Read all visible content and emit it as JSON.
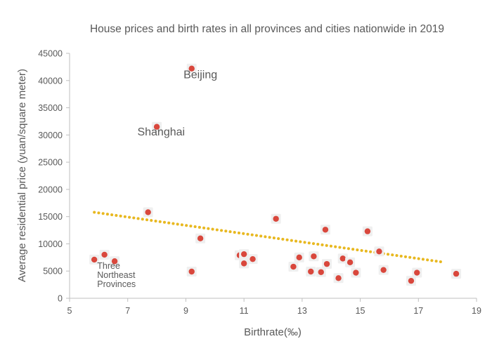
{
  "chart_data": {
    "type": "scatter",
    "title": "House prices and birth rates in all provinces and cities nationwide in 2019",
    "xlabel": "Birthrate(‰)",
    "ylabel": "Average residential price (yuan/square meter)",
    "xlim": [
      5,
      19
    ],
    "ylim": [
      0,
      45000
    ],
    "x_ticks": [
      5,
      7,
      9,
      11,
      13,
      15,
      17,
      19
    ],
    "y_ticks": [
      0,
      5000,
      10000,
      15000,
      20000,
      25000,
      30000,
      35000,
      40000,
      45000
    ],
    "grid": false,
    "legend": "none",
    "colors": {
      "points": "#d9473c",
      "trendline": "#e8b820",
      "text": "#595959",
      "axis": "#bfbfbf"
    },
    "points": [
      {
        "x": 9.2,
        "y": 42200
      },
      {
        "x": 8.0,
        "y": 31500
      },
      {
        "x": 7.7,
        "y": 15800
      },
      {
        "x": 5.85,
        "y": 7100
      },
      {
        "x": 6.2,
        "y": 8000
      },
      {
        "x": 6.55,
        "y": 6800
      },
      {
        "x": 9.2,
        "y": 4900
      },
      {
        "x": 9.5,
        "y": 11000
      },
      {
        "x": 10.85,
        "y": 7900
      },
      {
        "x": 11.0,
        "y": 8100
      },
      {
        "x": 11.0,
        "y": 6400
      },
      {
        "x": 11.3,
        "y": 7200
      },
      {
        "x": 12.1,
        "y": 14600
      },
      {
        "x": 12.7,
        "y": 5800
      },
      {
        "x": 12.9,
        "y": 7500
      },
      {
        "x": 13.3,
        "y": 4900
      },
      {
        "x": 13.4,
        "y": 7700
      },
      {
        "x": 13.65,
        "y": 4800
      },
      {
        "x": 13.8,
        "y": 12600
      },
      {
        "x": 13.85,
        "y": 6300
      },
      {
        "x": 14.25,
        "y": 3700
      },
      {
        "x": 14.4,
        "y": 7300
      },
      {
        "x": 14.65,
        "y": 6600
      },
      {
        "x": 14.85,
        "y": 4700
      },
      {
        "x": 15.25,
        "y": 12300
      },
      {
        "x": 15.65,
        "y": 8600
      },
      {
        "x": 15.8,
        "y": 5200
      },
      {
        "x": 16.75,
        "y": 3200
      },
      {
        "x": 16.95,
        "y": 4700
      },
      {
        "x": 18.3,
        "y": 4500
      }
    ],
    "trendline": {
      "x": [
        5.85,
        17.9
      ],
      "y": [
        15800,
        6600
      ]
    },
    "annotations": [
      {
        "text": "Beijing",
        "x": 9.5,
        "y": 40400
      },
      {
        "text": "Shanghai",
        "x": 8.15,
        "y": 29900
      },
      {
        "lines": [
          "Three",
          "Northeast",
          "Provinces"
        ],
        "x": 5.95,
        "y": 5400
      }
    ]
  }
}
